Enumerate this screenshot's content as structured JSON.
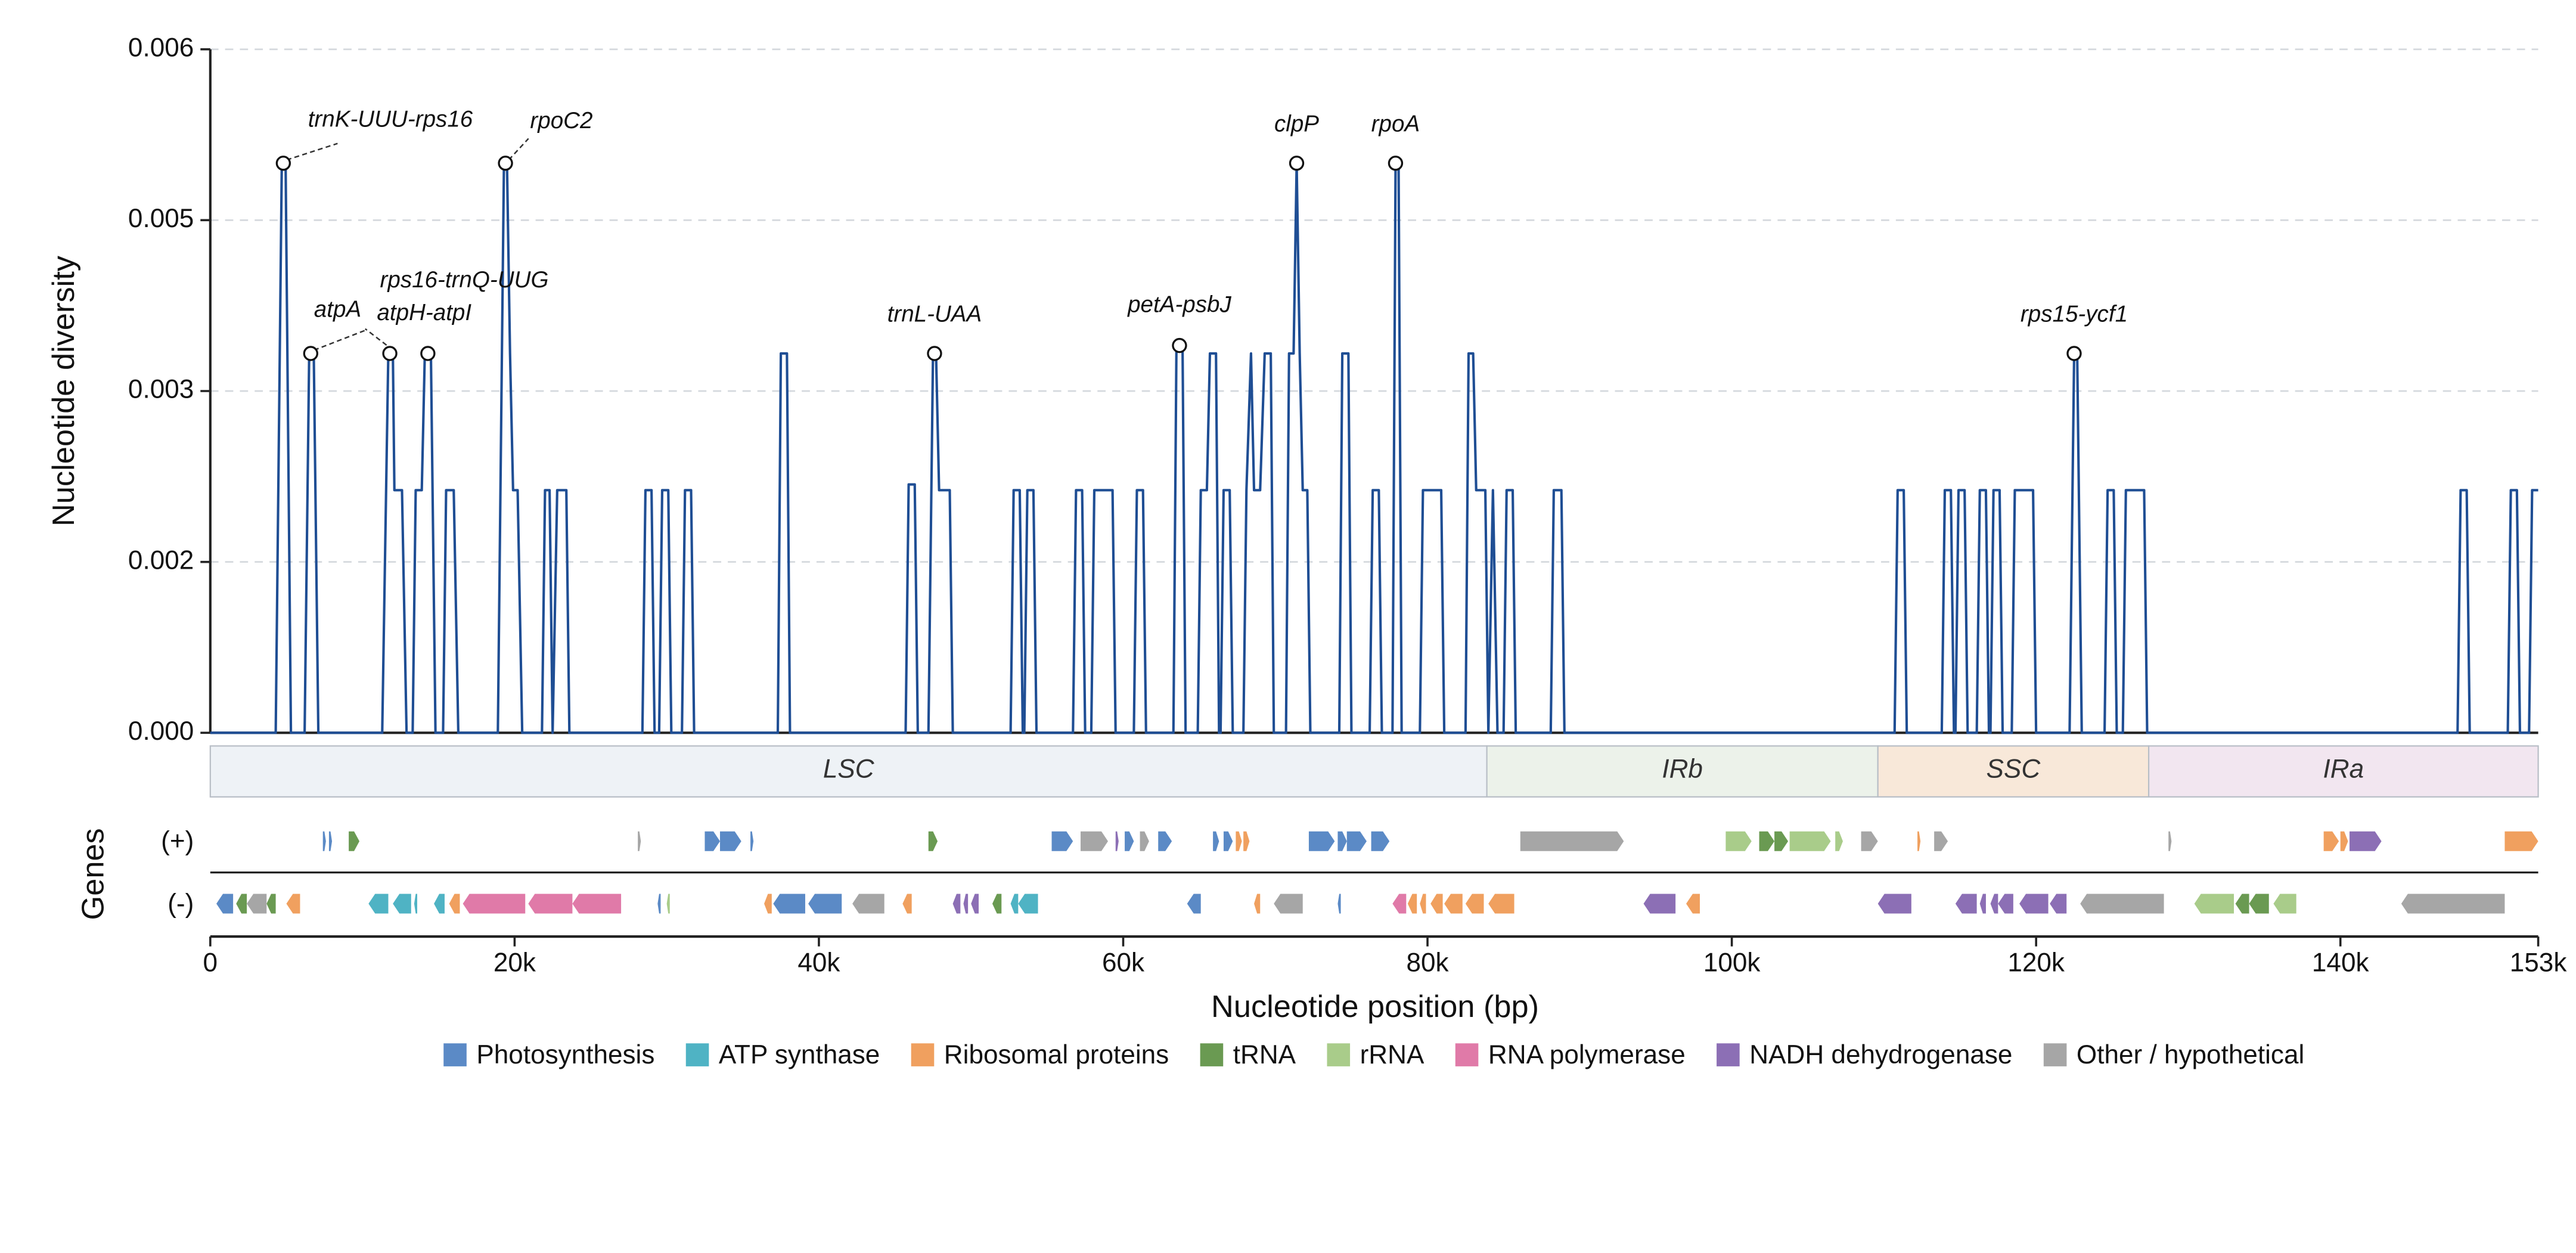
{
  "chart_data": {
    "type": "line",
    "ylabel": "Nucleotide diversity",
    "xlabel": "Nucleotide position (bp)",
    "color": "#1f4e94",
    "grid": true,
    "xlim": [
      0,
      153000
    ],
    "xticks": [
      0,
      {
        "value": 20000,
        "label": "20k"
      },
      {
        "value": 40000,
        "label": "40k"
      },
      {
        "value": 60000,
        "label": "60k"
      },
      {
        "value": 80000,
        "label": "80k"
      },
      {
        "value": 100000,
        "label": "100k"
      },
      {
        "value": 120000,
        "label": "120k"
      },
      {
        "value": 140000,
        "label": "140k"
      },
      {
        "value": 153000,
        "label": "153k"
      }
    ],
    "ylim": [
      0,
      0.006
    ],
    "yticks": [
      {
        "value": 0,
        "label": "0.000"
      },
      {
        "value": 0.0015,
        "label": "0.002"
      },
      0.003,
      {
        "value": 0.0045,
        "label": "0.005"
      },
      0.006
    ],
    "x": [
      0,
      4300,
      4700,
      4950,
      5300,
      6200,
      6500,
      6800,
      7100,
      11300,
      11700,
      12000,
      12100,
      12600,
      12900,
      13300,
      13500,
      13900,
      14100,
      14500,
      14800,
      15300,
      15500,
      16000,
      16300,
      18900,
      19300,
      19500,
      19700,
      19900,
      20200,
      20500,
      21800,
      22000,
      22300,
      22500,
      22800,
      23400,
      23600,
      28400,
      28600,
      29000,
      29200,
      29500,
      29700,
      30100,
      30300,
      31000,
      31200,
      31600,
      31800,
      37300,
      37500,
      37900,
      38100,
      45700,
      45900,
      46300,
      46500,
      47200,
      47500,
      47700,
      47900,
      48600,
      48800,
      52600,
      52800,
      53200,
      53400,
      53500,
      53700,
      54100,
      54300,
      56700,
      56900,
      57300,
      57500,
      57900,
      58100,
      59300,
      59500,
      60700,
      60900,
      61300,
      61500,
      63300,
      63500,
      63900,
      64100,
      64900,
      65100,
      65500,
      65700,
      66100,
      66300,
      66400,
      66600,
      67000,
      67200,
      67900,
      68100,
      68400,
      68600,
      69000,
      69300,
      69700,
      69900,
      70700,
      70900,
      71200,
      71400,
      71600,
      71800,
      72100,
      72300,
      74200,
      74400,
      74800,
      75000,
      76200,
      76400,
      76800,
      77000,
      77700,
      77900,
      78100,
      78300,
      79500,
      79700,
      80900,
      81100,
      82500,
      82700,
      83000,
      83200,
      83800,
      84000,
      84300,
      84600,
      85000,
      85200,
      85600,
      85800,
      88100,
      88300,
      88800,
      89000,
      110700,
      110900,
      111300,
      111500,
      113800,
      114000,
      114400,
      114600,
      114700,
      114900,
      115300,
      115500,
      116100,
      116300,
      116700,
      116900,
      117000,
      117200,
      117600,
      117800,
      118400,
      118600,
      119800,
      120000,
      122200,
      122500,
      122700,
      123000,
      124500,
      124700,
      125100,
      125300,
      125700,
      125900,
      127100,
      127300,
      147700,
      147900,
      148300,
      148500,
      151000,
      151200,
      151600,
      151800,
      152400,
      152600,
      153000
    ],
    "values": [
      0,
      0,
      0.005,
      0.005,
      0,
      0,
      0.00333,
      0.00333,
      0,
      0,
      0.00333,
      0.00333,
      0.00213,
      0.00213,
      0,
      0,
      0.00213,
      0.00213,
      0.00333,
      0.00333,
      0,
      0,
      0.00213,
      0.00213,
      0,
      0,
      0.005,
      0.005,
      0.00333,
      0.00213,
      0.00213,
      0,
      0,
      0.00213,
      0.00213,
      0,
      0.00213,
      0.00213,
      0,
      0,
      0.00213,
      0.00213,
      0,
      0,
      0.00213,
      0.00213,
      0,
      0,
      0.00213,
      0.00213,
      0,
      0,
      0.00333,
      0.00333,
      0,
      0,
      0.00218,
      0.00218,
      0,
      0,
      0.00333,
      0.00333,
      0.00213,
      0.00213,
      0,
      0,
      0.00213,
      0.00213,
      0,
      0,
      0.00213,
      0.00213,
      0,
      0,
      0.00213,
      0.00213,
      0,
      0,
      0.00213,
      0.00213,
      0,
      0,
      0.00213,
      0.00213,
      0,
      0,
      0.0034,
      0.0034,
      0,
      0,
      0.00213,
      0.00213,
      0.00333,
      0.00333,
      0,
      0,
      0.00213,
      0.00213,
      0,
      0,
      0.00213,
      0.00333,
      0.00213,
      0.00213,
      0.00333,
      0.00333,
      0,
      0,
      0.00333,
      0.00333,
      0.005,
      0.00333,
      0.00213,
      0.00213,
      0,
      0,
      0.00333,
      0.00333,
      0,
      0,
      0.00213,
      0.00213,
      0,
      0,
      0.005,
      0.005,
      0,
      0,
      0.00213,
      0.00213,
      0,
      0,
      0.00333,
      0.00333,
      0.00213,
      0.00213,
      0,
      0.00213,
      0,
      0,
      0.00213,
      0.00213,
      0,
      0,
      0.00213,
      0.00213,
      0,
      0,
      0.00213,
      0.00213,
      0,
      0,
      0.00213,
      0.00213,
      0,
      0,
      0.00213,
      0.00213,
      0,
      0,
      0.00213,
      0.00213,
      0,
      0,
      0.00213,
      0.00213,
      0,
      0,
      0.00213,
      0.00213,
      0,
      0,
      0.00333,
      0.00333,
      0,
      0,
      0.00213,
      0.00213,
      0,
      0,
      0.00213,
      0.00213,
      0,
      0,
      0.00213,
      0.00213,
      0,
      0,
      0.00213,
      0.00213,
      0,
      0,
      0.00213,
      0.00213
    ],
    "annotations": [
      {
        "label": "trnK-UUU-rps16",
        "x": 4800,
        "y": 0.005
      },
      {
        "label": "atpA",
        "x": 6600,
        "y": 0.00333
      },
      {
        "label": "rps16-trnQ-UUG",
        "x": 11800,
        "y": 0.00333
      },
      {
        "label": "atpH-atpI",
        "x": 14300,
        "y": 0.00333
      },
      {
        "label": "rpoC2",
        "x": 19400,
        "y": 0.005
      },
      {
        "label": "trnL-UAA",
        "x": 47600,
        "y": 0.00333
      },
      {
        "label": "petA-psbJ",
        "x": 63700,
        "y": 0.0034
      },
      {
        "label": "clpP",
        "x": 71400,
        "y": 0.005
      },
      {
        "label": "rpoA",
        "x": 77900,
        "y": 0.005
      },
      {
        "label": "rps15-ycf1",
        "x": 122500,
        "y": 0.00333
      }
    ],
    "regions": [
      {
        "name": "LSC",
        "start": 0,
        "end": 83900,
        "color": "#eef2f6"
      },
      {
        "name": "IRb",
        "start": 83900,
        "end": 109600,
        "color": "#ecf2ea"
      },
      {
        "name": "SSC",
        "start": 109600,
        "end": 127400,
        "color": "#f8e8d9"
      },
      {
        "name": "IRa",
        "start": 127400,
        "end": 153000,
        "color": "#f2e6f0"
      }
    ],
    "genes_label": "Genes",
    "plus_label": "(+)",
    "minus_label": "(-)",
    "gene_groups": [
      {
        "name": "Photosynthesis",
        "color": "#5b8ac6",
        "plus": [
          [
            7400,
            7600
          ],
          [
            7800,
            8000
          ],
          [
            32500,
            33500
          ],
          [
            33500,
            34900
          ],
          [
            35500,
            35700
          ],
          [
            55300,
            56700
          ],
          [
            60100,
            60700
          ],
          [
            62300,
            63200
          ],
          [
            65900,
            66300
          ],
          [
            66600,
            67200
          ],
          [
            72200,
            73900
          ],
          [
            74100,
            74700
          ],
          [
            74700,
            76000
          ],
          [
            76300,
            77500
          ]
        ],
        "minus": [
          [
            400,
            1500
          ],
          [
            29400,
            29600
          ],
          [
            37000,
            39100
          ],
          [
            39300,
            41500
          ],
          [
            64200,
            65100
          ],
          [
            74100,
            74300
          ]
        ]
      },
      {
        "name": "ATP synthase",
        "color": "#4fb3c4",
        "plus": [],
        "minus": [
          [
            10400,
            11700
          ],
          [
            12000,
            13200
          ],
          [
            13400,
            13600
          ],
          [
            14700,
            15400
          ],
          [
            52600,
            53100
          ],
          [
            53100,
            54400
          ]
        ]
      },
      {
        "name": "Ribosomal proteins",
        "color": "#f0a05f",
        "plus": [
          [
            67400,
            67800
          ],
          [
            67900,
            68300
          ],
          [
            112200,
            112400
          ],
          [
            138900,
            139900
          ],
          [
            140000,
            140500
          ],
          [
            150800,
            153000
          ]
        ],
        "minus": [
          [
            5000,
            5900
          ],
          [
            15700,
            16400
          ],
          [
            36400,
            36900
          ],
          [
            45500,
            46100
          ],
          [
            68600,
            69000
          ],
          [
            78700,
            79300
          ],
          [
            79500,
            79900
          ],
          [
            80200,
            81000
          ],
          [
            81100,
            82300
          ],
          [
            82500,
            83700
          ],
          [
            84000,
            85700
          ],
          [
            97000,
            97900
          ]
        ]
      },
      {
        "name": "tRNA",
        "color": "#6a9a52",
        "plus": [
          [
            9100,
            9800
          ],
          [
            47200,
            47800
          ],
          [
            101800,
            102800
          ],
          [
            102800,
            103700
          ]
        ],
        "minus": [
          [
            1700,
            2400
          ],
          [
            3700,
            4300
          ],
          [
            51400,
            52000
          ],
          [
            133100,
            134000
          ],
          [
            134000,
            135300
          ]
        ]
      },
      {
        "name": "rRNA",
        "color": "#a9cc8a",
        "plus": [
          [
            99600,
            101300
          ],
          [
            103800,
            106500
          ],
          [
            106800,
            107300
          ]
        ],
        "minus": [
          [
            30000,
            30200
          ],
          [
            130400,
            133000
          ],
          [
            135600,
            137100
          ]
        ]
      },
      {
        "name": "RNA polymerase",
        "color": "#e07aa8",
        "plus": [],
        "minus": [
          [
            16600,
            20700
          ],
          [
            20900,
            23800
          ],
          [
            23800,
            27000
          ],
          [
            77700,
            78600
          ]
        ]
      },
      {
        "name": "NADH dehydrogenase",
        "color": "#8c6fb5",
        "plus": [
          [
            59500,
            59700
          ],
          [
            140600,
            142700
          ]
        ],
        "minus": [
          [
            48800,
            49300
          ],
          [
            49500,
            49800
          ],
          [
            50000,
            50500
          ],
          [
            94200,
            96300
          ],
          [
            109600,
            111800
          ],
          [
            114700,
            116100
          ],
          [
            116300,
            116700
          ],
          [
            117000,
            117500
          ],
          [
            117500,
            118500
          ],
          [
            118900,
            120800
          ],
          [
            120900,
            122000
          ]
        ]
      },
      {
        "name": "Other / hypothetical",
        "color": "#a6a6a6",
        "plus": [
          [
            28100,
            28300
          ],
          [
            57200,
            59000
          ],
          [
            61100,
            61700
          ],
          [
            86100,
            92900
          ],
          [
            108500,
            109600
          ],
          [
            113300,
            114200
          ],
          [
            128700,
            128900
          ]
        ],
        "minus": [
          [
            2400,
            3700
          ],
          [
            42200,
            44300
          ],
          [
            69900,
            71800
          ],
          [
            122900,
            128400
          ],
          [
            144000,
            150800
          ]
        ]
      }
    ]
  }
}
